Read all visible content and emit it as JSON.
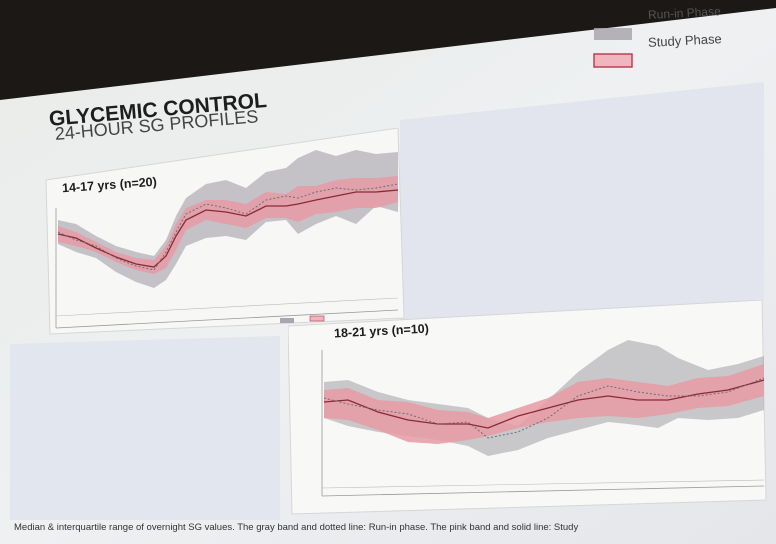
{
  "slide": {
    "title_line1": "GLYCEMIC CONTROL",
    "title_line2": "24-HOUR SG PROFILES",
    "legend_runin": "Run-in Phase",
    "legend_study": "Study Phase",
    "panel1_label": "14-17 yrs (n=20)",
    "panel2_label": "18-21 yrs (n=10)",
    "caption": "Median & interquartile range of overnight SG values. The gray band and dotted line: Run-in phase.  The pink band and solid line: Study"
  },
  "colors": {
    "runin_band": "#a9a6ae",
    "study_band": "#e79aa5",
    "study_line": "#8a2a35",
    "runin_line": "#6f6f75"
  }
}
